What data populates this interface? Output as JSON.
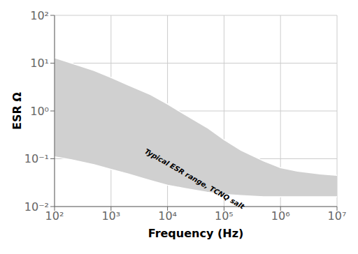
{
  "chart_data": {
    "type": "area",
    "log": true,
    "grid": true,
    "xlabel": "Frequency (Hz)",
    "ylabel": "ESR Ω",
    "color": "#d0d0d0",
    "x": [
      100,
      200,
      500,
      1000,
      2000,
      5000,
      10000,
      20000,
      50000,
      100000,
      200000,
      500000,
      1000000,
      2000000,
      5000000,
      10000000
    ],
    "series": [
      {
        "color": "#ffffff",
        "values": [
          13,
          10,
          7,
          5,
          3.5,
          2.2,
          1.4,
          0.85,
          0.45,
          0.25,
          0.15,
          0.09,
          0.065,
          0.055,
          0.048,
          0.045
        ]
      },
      {
        "color": "#ffffff",
        "values": [
          0.11,
          0.095,
          0.075,
          0.06,
          0.048,
          0.035,
          0.028,
          0.024,
          0.02,
          0.018,
          0.017,
          0.016,
          0.016,
          0.016,
          0.016,
          0.016
        ]
      }
    ],
    "xlim": [
      100,
      10000000
    ],
    "ylim": [
      0.01,
      100
    ],
    "xticks": [
      {
        "value": 100,
        "label": "10²"
      },
      {
        "value": 1000,
        "label": "10³"
      },
      {
        "value": 10000,
        "label": "10⁴"
      },
      {
        "value": 100000,
        "label": "10⁵"
      },
      {
        "value": 1000000,
        "label": "10⁶"
      },
      {
        "value": 10000000,
        "label": "10⁷"
      }
    ],
    "yticks": [
      {
        "value": 0.01,
        "label": "10⁻²"
      },
      {
        "value": 0.1,
        "label": "10⁻¹"
      },
      {
        "value": 1,
        "label": "10⁰"
      },
      {
        "value": 10,
        "label": "10¹"
      },
      {
        "value": 100,
        "label": "10²"
      }
    ],
    "annotations": [
      {
        "text": "Typical ESR range, TCNQ salt",
        "x": 30000,
        "y": 0.038
      }
    ]
  }
}
